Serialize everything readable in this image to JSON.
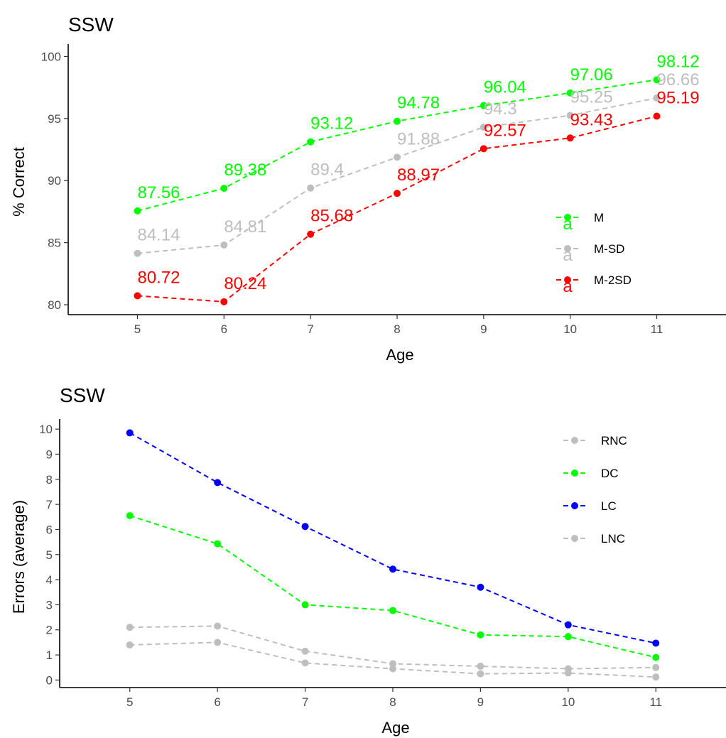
{
  "chart_data": [
    {
      "type": "line",
      "title": "SSW",
      "xlabel": "Age",
      "ylabel": "% Correct",
      "x": [
        5,
        6,
        7,
        8,
        9,
        10,
        11
      ],
      "xlim": [
        4.2,
        11.8
      ],
      "ylim": [
        79.2,
        101
      ],
      "yticks": [
        80,
        85,
        90,
        95,
        100
      ],
      "grid": false,
      "legend_position": "right",
      "series": [
        {
          "name": "M",
          "color": "#00ff00",
          "values": [
            87.56,
            89.38,
            93.12,
            94.78,
            96.04,
            97.06,
            98.12
          ],
          "labels": [
            "87.56",
            "89.38",
            "93.12",
            "94.78",
            "96.04",
            "97.06",
            "98.12"
          ]
        },
        {
          "name": "M-SD",
          "color": "#bebebe",
          "values": [
            84.14,
            84.81,
            89.4,
            91.88,
            94.3,
            95.25,
            96.66
          ],
          "labels": [
            "84.14",
            "84.81",
            "89.4",
            "91.88",
            "94.3",
            "95.25",
            "96.66"
          ]
        },
        {
          "name": "M-2SD",
          "color": "#ff0000",
          "values": [
            80.72,
            80.24,
            85.68,
            88.97,
            92.57,
            93.43,
            95.19
          ],
          "labels": [
            "80.72",
            "80.24",
            "85.68",
            "88.97",
            "92.57",
            "93.43",
            "95.19"
          ]
        }
      ],
      "legend_key_glyph": "a"
    },
    {
      "type": "line",
      "title": "SSW",
      "xlabel": "Age",
      "ylabel": "Errors (average)",
      "x": [
        5,
        6,
        7,
        8,
        9,
        10,
        11
      ],
      "xlim": [
        4.2,
        11.8
      ],
      "ylim": [
        -0.3,
        10.4
      ],
      "yticks": [
        0,
        1,
        2,
        3,
        4,
        5,
        6,
        7,
        8,
        9,
        10
      ],
      "grid": false,
      "legend_position": "right",
      "series": [
        {
          "name": "RNC",
          "color": "#bebebe",
          "values": [
            2.1,
            2.15,
            1.15,
            0.65,
            0.55,
            0.45,
            0.5
          ]
        },
        {
          "name": "DC",
          "color": "#00ff00",
          "values": [
            6.55,
            5.43,
            3.0,
            2.77,
            1.8,
            1.73,
            0.9
          ]
        },
        {
          "name": "LC",
          "color": "#0000ff",
          "values": [
            9.85,
            7.87,
            6.12,
            4.42,
            3.7,
            2.2,
            1.47
          ]
        },
        {
          "name": "LNC",
          "color": "#bebebe",
          "values": [
            1.4,
            1.5,
            0.68,
            0.45,
            0.25,
            0.28,
            0.12
          ]
        }
      ]
    }
  ]
}
